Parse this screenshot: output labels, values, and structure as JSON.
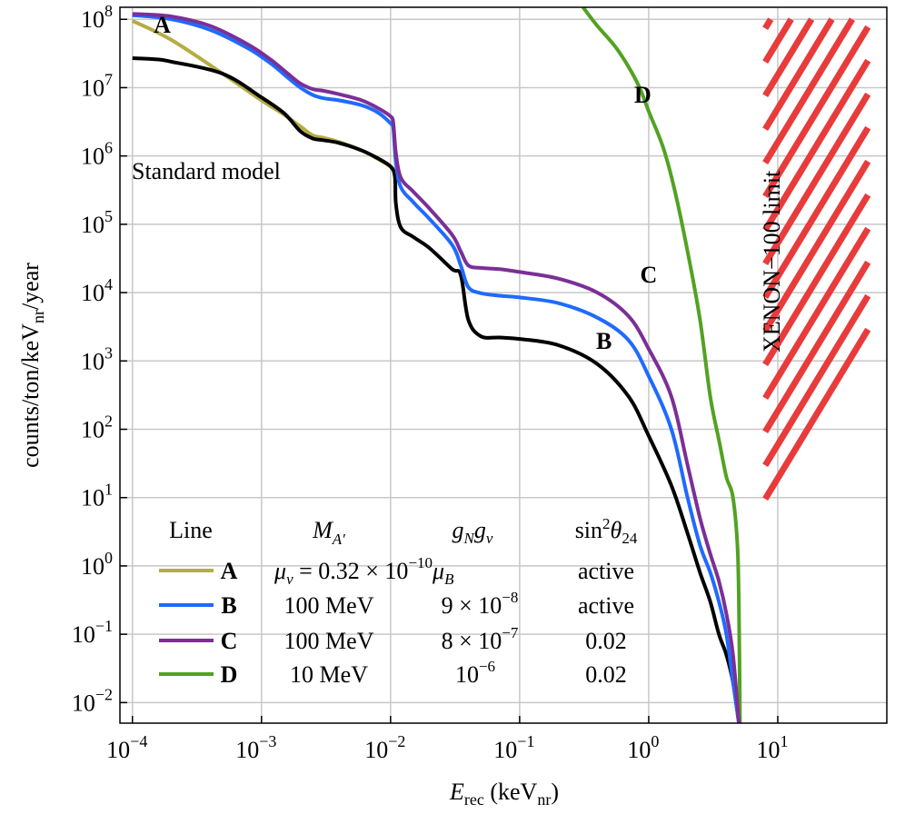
{
  "chart_data": {
    "type": "line",
    "xlabel": "E_rec (keV_nr)",
    "xlabel_main": "E",
    "xlabel_sub": "rec",
    "xlabel_unit": " (keV",
    "xlabel_unit_sub": "nr",
    "xlabel_close": ")",
    "ylabel": "counts/ton/keV_nr/year",
    "ylabel_a": "counts/ton/keV",
    "ylabel_sub": "nr",
    "ylabel_b": "/year",
    "xscale": "log",
    "yscale": "log",
    "xlim": [
      8e-05,
      70
    ],
    "ylim": [
      0.005,
      150000000
    ],
    "grid": true,
    "x_ticks": [
      {
        "base": "10",
        "exp": "−4"
      },
      {
        "base": "10",
        "exp": "−3"
      },
      {
        "base": "10",
        "exp": "−2"
      },
      {
        "base": "10",
        "exp": "−1"
      },
      {
        "base": "10",
        "exp": "0"
      },
      {
        "base": "10",
        "exp": "1"
      }
    ],
    "x_tick_values": [
      0.0001,
      0.001,
      0.01,
      0.1,
      1,
      10
    ],
    "y_ticks": [
      {
        "base": "10",
        "exp": "8"
      },
      {
        "base": "10",
        "exp": "7"
      },
      {
        "base": "10",
        "exp": "6"
      },
      {
        "base": "10",
        "exp": "5"
      },
      {
        "base": "10",
        "exp": "4"
      },
      {
        "base": "10",
        "exp": "3"
      },
      {
        "base": "10",
        "exp": "2"
      },
      {
        "base": "10",
        "exp": "1"
      },
      {
        "base": "10",
        "exp": "0"
      },
      {
        "base": "10",
        "exp": "−1"
      },
      {
        "base": "10",
        "exp": "−2"
      }
    ],
    "y_tick_values": [
      100000000,
      10000000,
      1000000,
      100000,
      10000,
      1000,
      100,
      10,
      1,
      0.1,
      0.01
    ],
    "series": [
      {
        "name": "A",
        "color": "#b5ac45",
        "label_at": [
          0.00017,
          64000000
        ],
        "x": [
          0.0001,
          0.0002,
          0.0005,
          0.001,
          0.0015,
          0.002,
          0.0025,
          0.003,
          0.004,
          0.006,
          0.008,
          0.01,
          0.0105
        ],
        "y": [
          95000000,
          50000000,
          16000000,
          6500000,
          4000000,
          2700000,
          2000000,
          1850000,
          1600000,
          1200000,
          900000,
          700000,
          650000
        ]
      },
      {
        "name": "B",
        "color": "#1f6aff",
        "label_at": [
          0.45,
          1500
        ],
        "x": [
          0.0001,
          0.0002,
          0.0004,
          0.0008,
          0.0012,
          0.0016,
          0.002,
          0.0025,
          0.003,
          0.004,
          0.006,
          0.008,
          0.01,
          0.0105,
          0.011,
          0.012,
          0.015,
          0.02,
          0.03,
          0.035,
          0.04,
          0.05,
          0.07,
          0.1,
          0.2,
          0.4,
          0.7,
          1,
          1.5,
          2,
          2.5,
          3,
          3.5,
          4,
          4.5,
          5
        ],
        "y": [
          115000000,
          100000000,
          70000000,
          37000000,
          22000000,
          14000000,
          10000000,
          7800000,
          7000000,
          6500000,
          5500000,
          4300000,
          3000000,
          2500000,
          800000,
          350000,
          210000,
          120000,
          50000,
          25000,
          12000,
          9800,
          9000,
          8500,
          7000,
          4300,
          2000,
          600,
          100,
          10,
          2,
          0.8,
          0.3,
          0.1,
          0.02,
          0.005
        ]
      },
      {
        "name": "C",
        "color": "#7b2f96",
        "label_at": [
          1.0,
          14000
        ],
        "x": [
          0.0001,
          0.0002,
          0.0004,
          0.0008,
          0.0012,
          0.0016,
          0.002,
          0.0025,
          0.003,
          0.004,
          0.006,
          0.008,
          0.01,
          0.0105,
          0.011,
          0.012,
          0.015,
          0.02,
          0.03,
          0.035,
          0.04,
          0.05,
          0.07,
          0.1,
          0.2,
          0.4,
          0.7,
          1,
          1.5,
          2,
          2.5,
          3,
          3.5,
          4,
          4.5,
          5
        ],
        "y": [
          120000000,
          110000000,
          80000000,
          42000000,
          25000000,
          16000000,
          11500000,
          9500000,
          9000000,
          8000000,
          6500000,
          5000000,
          3800000,
          3000000,
          1100000,
          480000,
          300000,
          170000,
          70000,
          40000,
          25000,
          23000,
          22000,
          20000,
          16000,
          10000,
          4500,
          1500,
          300,
          30,
          5,
          1.5,
          0.6,
          0.2,
          0.05,
          0.005
        ]
      },
      {
        "name": "D",
        "color": "#52a222",
        "label_at": [
          0.9,
          6000000
        ],
        "x": [
          0.31,
          0.4,
          0.55,
          0.7,
          0.85,
          1,
          1.3,
          1.6,
          2,
          2.5,
          3,
          3.5,
          4,
          4.5,
          4.9,
          5.05,
          5.1
        ],
        "y": [
          150000000,
          80000000,
          40000000,
          20000000,
          10000000,
          4500000,
          1300000,
          300000,
          40000,
          4000,
          300,
          70,
          20,
          10,
          1.5,
          0.05,
          0.005
        ]
      },
      {
        "name": "Standard model",
        "color": "#000000",
        "label_at": [
          0.0001,
          700000
        ],
        "x": [
          0.0001,
          0.00015,
          0.0002,
          0.0005,
          0.001,
          0.0015,
          0.002,
          0.0025,
          0.003,
          0.004,
          0.006,
          0.008,
          0.01,
          0.0108,
          0.011,
          0.012,
          0.015,
          0.02,
          0.03,
          0.035,
          0.04,
          0.05,
          0.07,
          0.1,
          0.2,
          0.4,
          0.7,
          1,
          1.5,
          2,
          2.5,
          3,
          3.5,
          4,
          4.5,
          5
        ],
        "y": [
          27000000,
          26000000,
          24000000,
          16000000,
          7200000,
          4200000,
          2300000,
          1800000,
          1700000,
          1550000,
          1200000,
          920000,
          700000,
          500000,
          200000,
          90000,
          65000,
          45000,
          22000,
          18000,
          4000,
          2300,
          2200,
          2100,
          1700,
          900,
          300,
          80,
          15,
          3,
          0.8,
          0.3,
          0.1,
          0.05,
          0.02,
          0.005
        ]
      }
    ],
    "limit_region": {
      "label": "XENON−100 limit",
      "color": "#e83b3b",
      "x_from": 8,
      "x_to": 50,
      "y_from": 5,
      "y_to": 100000000
    }
  },
  "annotations": {
    "standard_model": "Standard model",
    "xenon_label": "XENON−100 limit"
  },
  "legend": {
    "headers": {
      "line": "Line",
      "mass": {
        "main": "M",
        "sub": "A′"
      },
      "coupling": {
        "a": "g",
        "a_sub": "N",
        "b": "g",
        "b_sub": "ν"
      },
      "mixing": {
        "main": "sin",
        "sup": "2",
        "theta": "θ",
        "sub": "24"
      }
    },
    "rows": [
      {
        "label": "A",
        "color": "#b5ac45",
        "mass_text": "μ",
        "mass_sub": "ν",
        "mass_mid": " = 0.32 × 10",
        "mass_sup": "−10",
        "mass_tail": "μ",
        "mass_tail_sub": "B",
        "coupling": "",
        "coupling_sup": "",
        "mixing": "active"
      },
      {
        "label": "B",
        "color": "#1f6aff",
        "mass": "100 MeV",
        "coupling": "9 × 10",
        "coupling_sup": "−8",
        "mixing": "active"
      },
      {
        "label": "C",
        "color": "#7b2f96",
        "mass": "100 MeV",
        "coupling": "8 × 10",
        "coupling_sup": "−7",
        "mixing": "0.02"
      },
      {
        "label": "D",
        "color": "#52a222",
        "mass": "10 MeV",
        "coupling": "10",
        "coupling_sup": "−6",
        "mixing": "0.02"
      }
    ]
  }
}
